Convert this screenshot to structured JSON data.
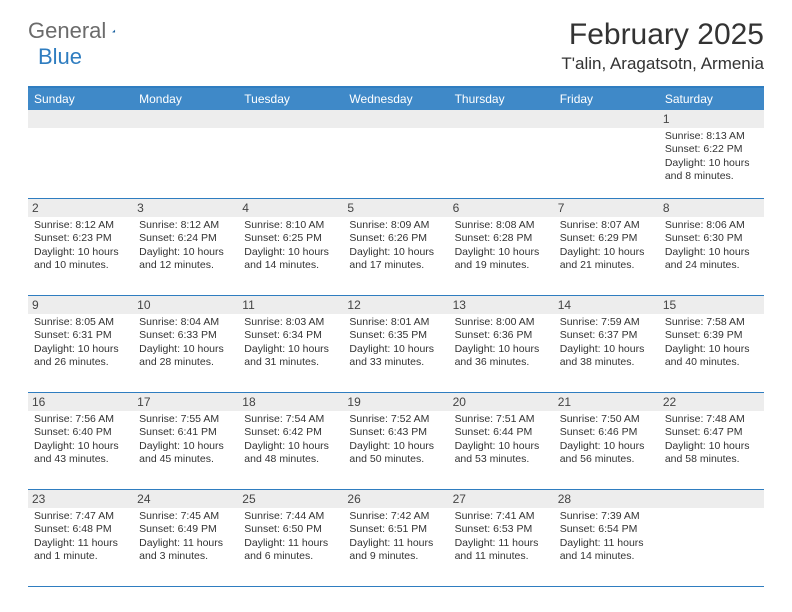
{
  "logo": {
    "word1": "General",
    "word2": "Blue"
  },
  "colors": {
    "header_bar": "#3f89c8",
    "accent": "#2f7dc0",
    "daynum_bg": "#ededed",
    "text": "#333333",
    "logo_grey": "#6b6b6b",
    "background": "#ffffff"
  },
  "title": "February 2025",
  "location": "T'alin, Aragatsotn, Armenia",
  "day_names": [
    "Sunday",
    "Monday",
    "Tuesday",
    "Wednesday",
    "Thursday",
    "Friday",
    "Saturday"
  ],
  "weeks": [
    [
      {
        "n": "",
        "sr": "",
        "ss": "",
        "dl": ""
      },
      {
        "n": "",
        "sr": "",
        "ss": "",
        "dl": ""
      },
      {
        "n": "",
        "sr": "",
        "ss": "",
        "dl": ""
      },
      {
        "n": "",
        "sr": "",
        "ss": "",
        "dl": ""
      },
      {
        "n": "",
        "sr": "",
        "ss": "",
        "dl": ""
      },
      {
        "n": "",
        "sr": "",
        "ss": "",
        "dl": ""
      },
      {
        "n": "1",
        "sr": "Sunrise: 8:13 AM",
        "ss": "Sunset: 6:22 PM",
        "dl": "Daylight: 10 hours and 8 minutes."
      }
    ],
    [
      {
        "n": "2",
        "sr": "Sunrise: 8:12 AM",
        "ss": "Sunset: 6:23 PM",
        "dl": "Daylight: 10 hours and 10 minutes."
      },
      {
        "n": "3",
        "sr": "Sunrise: 8:12 AM",
        "ss": "Sunset: 6:24 PM",
        "dl": "Daylight: 10 hours and 12 minutes."
      },
      {
        "n": "4",
        "sr": "Sunrise: 8:10 AM",
        "ss": "Sunset: 6:25 PM",
        "dl": "Daylight: 10 hours and 14 minutes."
      },
      {
        "n": "5",
        "sr": "Sunrise: 8:09 AM",
        "ss": "Sunset: 6:26 PM",
        "dl": "Daylight: 10 hours and 17 minutes."
      },
      {
        "n": "6",
        "sr": "Sunrise: 8:08 AM",
        "ss": "Sunset: 6:28 PM",
        "dl": "Daylight: 10 hours and 19 minutes."
      },
      {
        "n": "7",
        "sr": "Sunrise: 8:07 AM",
        "ss": "Sunset: 6:29 PM",
        "dl": "Daylight: 10 hours and 21 minutes."
      },
      {
        "n": "8",
        "sr": "Sunrise: 8:06 AM",
        "ss": "Sunset: 6:30 PM",
        "dl": "Daylight: 10 hours and 24 minutes."
      }
    ],
    [
      {
        "n": "9",
        "sr": "Sunrise: 8:05 AM",
        "ss": "Sunset: 6:31 PM",
        "dl": "Daylight: 10 hours and 26 minutes."
      },
      {
        "n": "10",
        "sr": "Sunrise: 8:04 AM",
        "ss": "Sunset: 6:33 PM",
        "dl": "Daylight: 10 hours and 28 minutes."
      },
      {
        "n": "11",
        "sr": "Sunrise: 8:03 AM",
        "ss": "Sunset: 6:34 PM",
        "dl": "Daylight: 10 hours and 31 minutes."
      },
      {
        "n": "12",
        "sr": "Sunrise: 8:01 AM",
        "ss": "Sunset: 6:35 PM",
        "dl": "Daylight: 10 hours and 33 minutes."
      },
      {
        "n": "13",
        "sr": "Sunrise: 8:00 AM",
        "ss": "Sunset: 6:36 PM",
        "dl": "Daylight: 10 hours and 36 minutes."
      },
      {
        "n": "14",
        "sr": "Sunrise: 7:59 AM",
        "ss": "Sunset: 6:37 PM",
        "dl": "Daylight: 10 hours and 38 minutes."
      },
      {
        "n": "15",
        "sr": "Sunrise: 7:58 AM",
        "ss": "Sunset: 6:39 PM",
        "dl": "Daylight: 10 hours and 40 minutes."
      }
    ],
    [
      {
        "n": "16",
        "sr": "Sunrise: 7:56 AM",
        "ss": "Sunset: 6:40 PM",
        "dl": "Daylight: 10 hours and 43 minutes."
      },
      {
        "n": "17",
        "sr": "Sunrise: 7:55 AM",
        "ss": "Sunset: 6:41 PM",
        "dl": "Daylight: 10 hours and 45 minutes."
      },
      {
        "n": "18",
        "sr": "Sunrise: 7:54 AM",
        "ss": "Sunset: 6:42 PM",
        "dl": "Daylight: 10 hours and 48 minutes."
      },
      {
        "n": "19",
        "sr": "Sunrise: 7:52 AM",
        "ss": "Sunset: 6:43 PM",
        "dl": "Daylight: 10 hours and 50 minutes."
      },
      {
        "n": "20",
        "sr": "Sunrise: 7:51 AM",
        "ss": "Sunset: 6:44 PM",
        "dl": "Daylight: 10 hours and 53 minutes."
      },
      {
        "n": "21",
        "sr": "Sunrise: 7:50 AM",
        "ss": "Sunset: 6:46 PM",
        "dl": "Daylight: 10 hours and 56 minutes."
      },
      {
        "n": "22",
        "sr": "Sunrise: 7:48 AM",
        "ss": "Sunset: 6:47 PM",
        "dl": "Daylight: 10 hours and 58 minutes."
      }
    ],
    [
      {
        "n": "23",
        "sr": "Sunrise: 7:47 AM",
        "ss": "Sunset: 6:48 PM",
        "dl": "Daylight: 11 hours and 1 minute."
      },
      {
        "n": "24",
        "sr": "Sunrise: 7:45 AM",
        "ss": "Sunset: 6:49 PM",
        "dl": "Daylight: 11 hours and 3 minutes."
      },
      {
        "n": "25",
        "sr": "Sunrise: 7:44 AM",
        "ss": "Sunset: 6:50 PM",
        "dl": "Daylight: 11 hours and 6 minutes."
      },
      {
        "n": "26",
        "sr": "Sunrise: 7:42 AM",
        "ss": "Sunset: 6:51 PM",
        "dl": "Daylight: 11 hours and 9 minutes."
      },
      {
        "n": "27",
        "sr": "Sunrise: 7:41 AM",
        "ss": "Sunset: 6:53 PM",
        "dl": "Daylight: 11 hours and 11 minutes."
      },
      {
        "n": "28",
        "sr": "Sunrise: 7:39 AM",
        "ss": "Sunset: 6:54 PM",
        "dl": "Daylight: 11 hours and 14 minutes."
      },
      {
        "n": "",
        "sr": "",
        "ss": "",
        "dl": ""
      }
    ]
  ]
}
